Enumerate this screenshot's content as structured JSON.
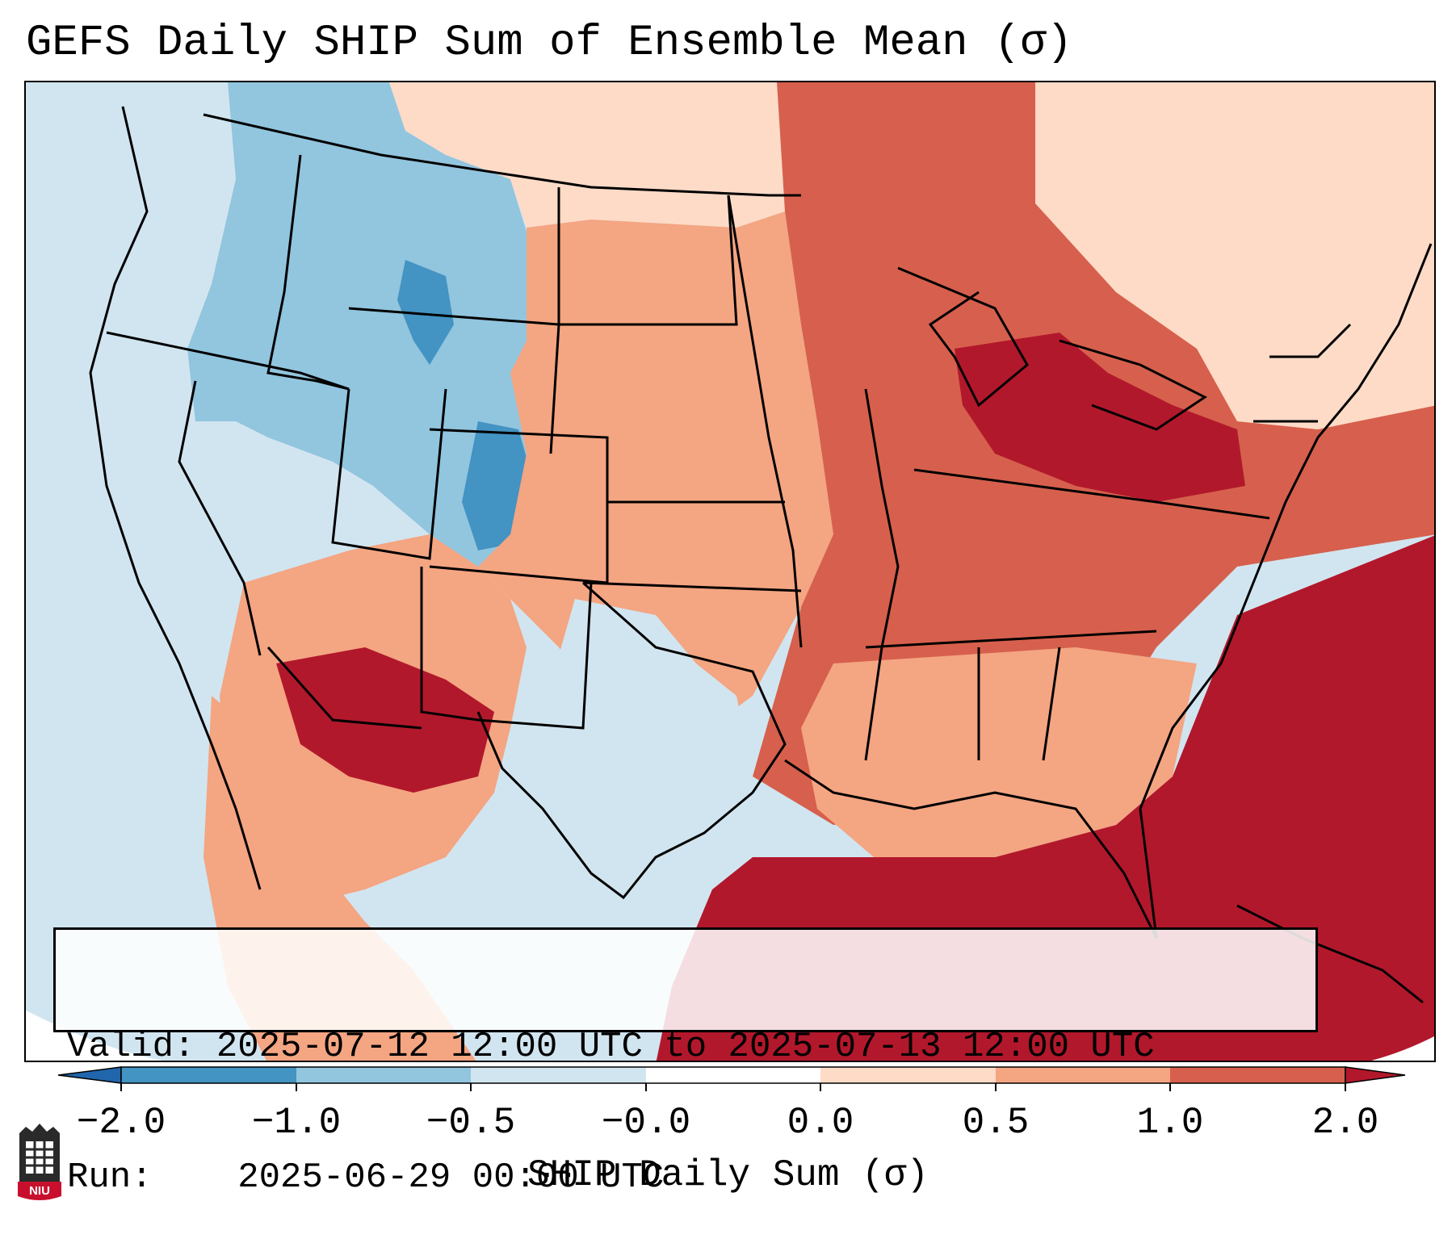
{
  "title": "GEFS Daily SHIP Sum of Ensemble Mean (σ)",
  "info": {
    "valid_label": "Valid:",
    "valid_value": "2025-07-12 12:00 UTC to 2025-07-13 12:00 UTC",
    "run_label": "Run:",
    "run_value": "2025-06-29 00:00 UTC"
  },
  "colorbar": {
    "label": "SHIP Daily Sum (σ)",
    "ticks": [
      "−2.0",
      "−1.0",
      "−0.5",
      "−0.0",
      "0.0",
      "0.5",
      "1.0",
      "2.0"
    ],
    "colors": {
      "below": "#2166ac",
      "b1": "#4393c3",
      "b2": "#92c5de",
      "b3": "#d1e5f0",
      "b4": "#fddbc7",
      "b5": "#f4a582",
      "b6": "#d6604d",
      "above": "#b2182b"
    }
  },
  "logo": {
    "text": "NIU"
  }
}
